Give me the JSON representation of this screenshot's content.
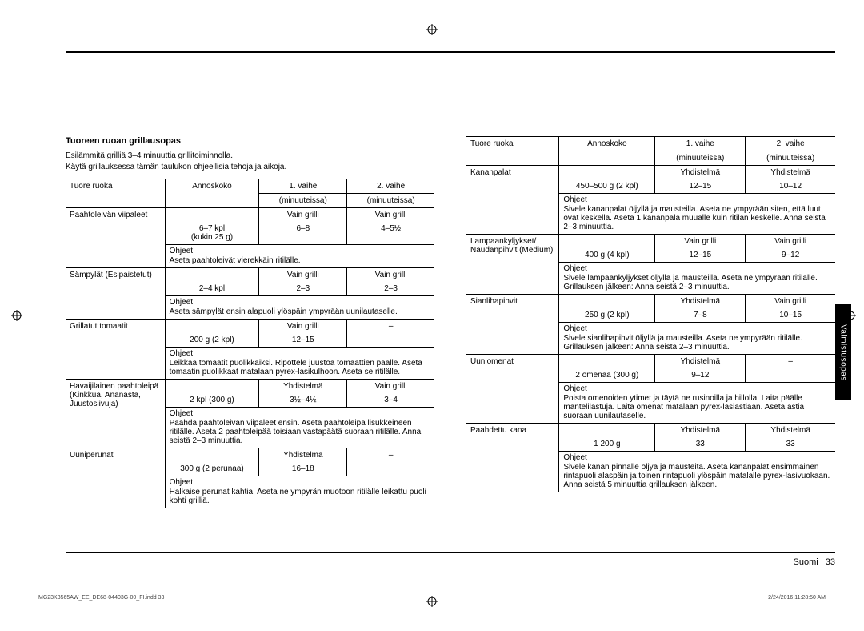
{
  "section_title": "Tuoreen ruoan grillausopas",
  "intro_lines": [
    "Esilämmitä grilliä 3–4 minuuttia grillitoiminnolla.",
    "Käytä grillauksessa tämän taulukon ohjeellisia tehoja ja aikoja."
  ],
  "headers": {
    "food": "Tuore ruoka",
    "portion": "Annoskoko",
    "phase1": "1. vaihe",
    "phase1_sub": "(minuuteissa)",
    "phase2": "2. vaihe",
    "phase2_sub": "(minuuteissa)",
    "instructions": "Ohjeet"
  },
  "left_rows": [
    {
      "food": "Paahtoleivän viipaleet",
      "portion": "6–7 kpl\n(kukin 25 g)",
      "mode1": "Vain grilli",
      "time1": "6–8",
      "mode2": "Vain grilli",
      "time2": "4–5½",
      "instr": "Aseta paahtoleivät vierekkäin ritilälle."
    },
    {
      "food": "Sämpylät (Esipaistetut)",
      "portion": "2–4 kpl",
      "mode1": "Vain grilli",
      "time1": "2–3",
      "mode2": "Vain grilli",
      "time2": "2–3",
      "instr": "Aseta sämpylät ensin alapuoli ylöspäin ympyrään uunilautaselle."
    },
    {
      "food": "Grillatut tomaatit",
      "portion": "200 g (2 kpl)",
      "mode1": "Vain grilli",
      "time1": "12–15",
      "mode2": "–",
      "time2": "",
      "instr": "Leikkaa tomaatit puolikkaiksi. Ripottele juustoa tomaattien päälle. Aseta tomaatin puolikkaat matalaan pyrex-lasikulhoon. Aseta se ritilälle."
    },
    {
      "food": "Havaijilainen paahtoleipä (Kinkkua, Ananasta, Juustosiivuja)",
      "portion": "2 kpl (300 g)",
      "mode1": "Yhdistelmä",
      "time1": "3½–4½",
      "mode2": "Vain grilli",
      "time2": "3–4",
      "instr": "Paahda paahtoleivän viipaleet ensin. Aseta paahtoleipä lisukkeineen ritilälle. Aseta 2 paahtoleipää toisiaan vastapäätä suoraan ritilälle. Anna seistä 2–3 minuuttia."
    },
    {
      "food": "Uuniperunat",
      "portion": "300 g (2 perunaa)",
      "mode1": "Yhdistelmä",
      "time1": "16–18",
      "mode2": "–",
      "time2": "",
      "instr": "Halkaise perunat kahtia. Aseta ne ympyrän muotoon ritilälle leikattu puoli kohti grilliä."
    }
  ],
  "right_rows": [
    {
      "food": "Kananpalat",
      "portion": "450–500 g (2 kpl)",
      "mode1": "Yhdistelmä",
      "time1": "12–15",
      "mode2": "Yhdistelmä",
      "time2": "10–12",
      "instr": "Sivele kananpalat öljyllä ja mausteilla. Aseta ne ympyrään siten, että luut ovat keskellä. Aseta 1 kananpala muualle kuin ritilän keskelle. Anna seistä 2–3 minuuttia."
    },
    {
      "food": "Lampaankyljykset/ Naudanpihvit (Medium)",
      "portion": "400 g (4 kpl)",
      "mode1": "Vain grilli",
      "time1": "12–15",
      "mode2": "Vain grilli",
      "time2": "9–12",
      "instr": "Sivele lampaankyljykset öljyllä ja mausteilla. Aseta ne ympyrään ritilälle. Grillauksen jälkeen: Anna seistä 2–3 minuuttia."
    },
    {
      "food": "Sianlihapihvit",
      "portion": "250 g (2 kpl)",
      "mode1": "Yhdistelmä",
      "time1": "7–8",
      "mode2": "Vain grilli",
      "time2": "10–15",
      "instr": "Sivele sianlihapihvit öljyllä ja mausteilla. Aseta ne ympyrään ritilälle. Grillauksen jälkeen: Anna seistä 2–3 minuuttia."
    },
    {
      "food": "Uuniomenat",
      "portion": "2 omenaa (300 g)",
      "mode1": "Yhdistelmä",
      "time1": "9–12",
      "mode2": "–",
      "time2": "",
      "instr": "Poista omenoiden ytimet ja täytä ne rusinoilla ja hillolla. Laita päälle mantelilastuja. Laita omenat matalaan pyrex-lasiastiaan. Aseta astia suoraan uunilautaselle."
    },
    {
      "food": "Paahdettu kana",
      "portion": "1 200 g",
      "mode1": "Yhdistelmä",
      "time1": "33",
      "mode2": "Yhdistelmä",
      "time2": "33",
      "instr": "Sivele kanan pinnalle öljyä ja mausteita. Aseta kananpalat ensimmäinen rintapuoli alaspäin ja toinen rintapuoli ylöspäin matalalle pyrex-lasivuokaan. Anna seistä 5 minuuttia grillauksen jälkeen."
    }
  ],
  "side_tab": "Valmistusopas",
  "footer_lang": "Suomi",
  "footer_page": "33",
  "print_left": "MG23K3565AW_EE_DE68-04403G-00_FI.indd   33",
  "print_right": "2/24/2016   11:28:50 AM"
}
